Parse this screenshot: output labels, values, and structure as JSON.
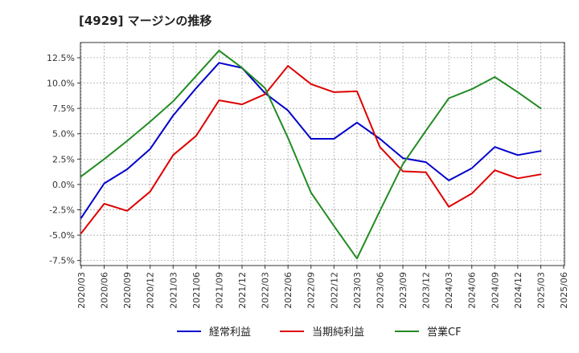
{
  "title": "[4929]  マージンの推移",
  "chart_data": {
    "type": "line",
    "title": "[4929]  マージンの推移",
    "xlabel": "",
    "ylabel": "",
    "categories": [
      "2020/03",
      "2020/06",
      "2020/09",
      "2020/12",
      "2021/03",
      "2021/06",
      "2021/09",
      "2021/12",
      "2022/03",
      "2022/06",
      "2022/09",
      "2022/12",
      "2023/03",
      "2023/06",
      "2023/09",
      "2023/12",
      "2024/03",
      "2024/06",
      "2024/09",
      "2024/12",
      "2025/03",
      "2025/06"
    ],
    "ylim": [
      -8.0,
      14.0
    ],
    "yticks": [
      -7.5,
      -5.0,
      -2.5,
      0.0,
      2.5,
      5.0,
      7.5,
      10.0,
      12.5
    ],
    "ytick_labels": [
      "-7.5%",
      "-5.0%",
      "-2.5%",
      "0.0%",
      "2.5%",
      "5.0%",
      "7.5%",
      "10.0%",
      "12.5%"
    ],
    "grid": true,
    "legend_position": "bottom",
    "series": [
      {
        "name": "経常利益",
        "color": "#0000cc",
        "values": [
          -3.3,
          0.1,
          1.5,
          3.5,
          6.8,
          9.5,
          12.0,
          11.5,
          9.0,
          7.3,
          4.5,
          4.5,
          6.1,
          4.5,
          2.6,
          2.2,
          0.4,
          1.6,
          3.7,
          2.9,
          3.3,
          null
        ]
      },
      {
        "name": "当期純利益",
        "color": "#dd0000",
        "values": [
          -4.8,
          -1.9,
          -2.6,
          -0.7,
          2.9,
          4.8,
          8.3,
          7.9,
          8.9,
          11.7,
          9.9,
          9.1,
          9.2,
          3.7,
          1.3,
          1.2,
          -2.2,
          -0.9,
          1.4,
          0.6,
          1.0,
          null
        ]
      },
      {
        "name": "営業CF",
        "color": "#228b22",
        "values": [
          0.8,
          2.5,
          4.3,
          6.2,
          8.2,
          10.7,
          13.2,
          11.5,
          9.5,
          4.6,
          -0.8,
          -4.1,
          -7.3,
          -2.6,
          2.0,
          5.3,
          8.5,
          9.4,
          10.6,
          9.1,
          7.5,
          null
        ]
      }
    ]
  }
}
